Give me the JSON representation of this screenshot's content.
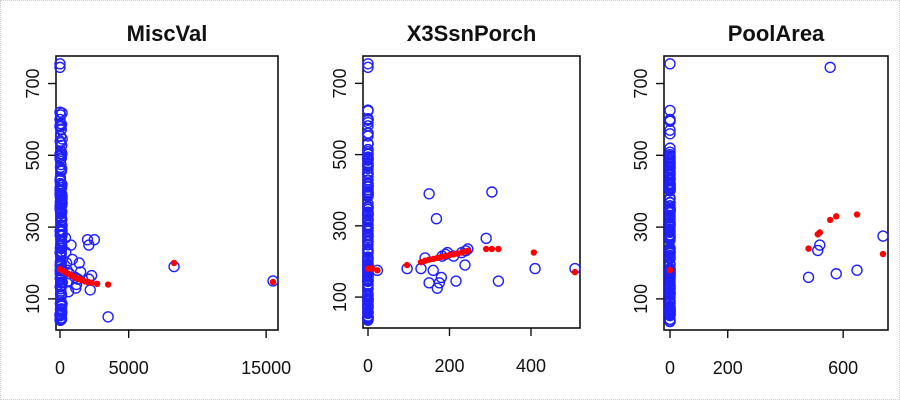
{
  "chart_data": [
    {
      "type": "scatter",
      "title": "MiscVal",
      "xlabel": "",
      "ylabel": "",
      "xlim": [
        0,
        15500
      ],
      "ylim": [
        30,
        760
      ],
      "xticks": [
        0,
        5000,
        15000
      ],
      "xtick_labels": [
        "0",
        "5000",
        "15000"
      ],
      "yticks": [
        100,
        300,
        500,
        700
      ],
      "ytick_labels": [
        "100",
        "300",
        "500",
        "700"
      ],
      "grid": false,
      "series": [
        {
          "marker": "open-circle",
          "color": "#2020ff",
          "x_stacked": 0,
          "y_stacked_range": [
            35,
            620
          ],
          "points": [
            [
              0,
              745
            ],
            [
              0,
              755
            ],
            [
              0,
              620
            ],
            [
              0,
              600
            ],
            [
              0,
              580
            ],
            [
              400,
              270
            ],
            [
              420,
              230
            ],
            [
              480,
              200
            ],
            [
              520,
              180
            ],
            [
              600,
              150
            ],
            [
              620,
              120
            ],
            [
              700,
              170
            ],
            [
              800,
              250
            ],
            [
              900,
              210
            ],
            [
              1100,
              160
            ],
            [
              1150,
              130
            ],
            [
              1200,
              140
            ],
            [
              1300,
              155
            ],
            [
              1400,
              200
            ],
            [
              1500,
              175
            ],
            [
              2000,
              265
            ],
            [
              2100,
              250
            ],
            [
              2100,
              155
            ],
            [
              2200,
              125
            ],
            [
              2300,
              165
            ],
            [
              2500,
              265
            ],
            [
              3500,
              50
            ],
            [
              8300,
              190
            ],
            [
              15500,
              150
            ]
          ]
        },
        {
          "marker": "filled-circle",
          "color": "#ff0000",
          "points": [
            [
              0,
              183
            ],
            [
              200,
              178
            ],
            [
              400,
              174
            ],
            [
              600,
              170
            ],
            [
              800,
              166
            ],
            [
              1000,
              162
            ],
            [
              1200,
              158
            ],
            [
              1400,
              155
            ],
            [
              1600,
              152
            ],
            [
              1800,
              149
            ],
            [
              2000,
              147
            ],
            [
              2300,
              145
            ],
            [
              2700,
              142
            ],
            [
              3500,
              140
            ],
            [
              8300,
              200
            ],
            [
              15500,
              147
            ]
          ]
        }
      ]
    },
    {
      "type": "scatter",
      "title": "X3SsnPorch",
      "xlabel": "",
      "ylabel": "",
      "xlim": [
        0,
        508
      ],
      "ylim": [
        30,
        760
      ],
      "xticks": [
        0,
        200,
        400
      ],
      "xtick_labels": [
        "0",
        "200",
        "400"
      ],
      "yticks": [
        100,
        300,
        500,
        700
      ],
      "ytick_labels": [
        "100",
        "300",
        "500",
        "700"
      ],
      "grid": false,
      "series": [
        {
          "marker": "open-circle",
          "color": "#2020ff",
          "x_stacked": 0,
          "y_stacked_range": [
            35,
            625
          ],
          "points": [
            [
              0,
              745
            ],
            [
              0,
              755
            ],
            [
              0,
              625
            ],
            [
              0,
              600
            ],
            [
              0,
              560
            ],
            [
              0,
              530
            ],
            [
              23,
              175
            ],
            [
              96,
              180
            ],
            [
              130,
              180
            ],
            [
              140,
              210
            ],
            [
              150,
              390
            ],
            [
              150,
              140
            ],
            [
              160,
              175
            ],
            [
              168,
              320
            ],
            [
              170,
              125
            ],
            [
              175,
              140
            ],
            [
              180,
              155
            ],
            [
              182,
              215
            ],
            [
              190,
              220
            ],
            [
              195,
              225
            ],
            [
              210,
              215
            ],
            [
              216,
              145
            ],
            [
              230,
              225
            ],
            [
              238,
              190
            ],
            [
              240,
              230
            ],
            [
              245,
              235
            ],
            [
              290,
              265
            ],
            [
              304,
              395
            ],
            [
              320,
              145
            ],
            [
              410,
              180
            ],
            [
              508,
              180
            ]
          ]
        },
        {
          "marker": "filled-circle",
          "color": "#ff0000",
          "points": [
            [
              0,
              180
            ],
            [
              10,
              180
            ],
            [
              23,
              175
            ],
            [
              96,
              190
            ],
            [
              130,
              198
            ],
            [
              140,
              202
            ],
            [
              150,
              205
            ],
            [
              160,
              207
            ],
            [
              170,
              210
            ],
            [
              180,
              213
            ],
            [
              190,
              215
            ],
            [
              200,
              218
            ],
            [
              210,
              220
            ],
            [
              220,
              222
            ],
            [
              230,
              225
            ],
            [
              240,
              228
            ],
            [
              245,
              230
            ],
            [
              290,
              235
            ],
            [
              304,
              235
            ],
            [
              320,
              235
            ],
            [
              407,
              225
            ],
            [
              508,
              170
            ]
          ]
        }
      ]
    },
    {
      "type": "scatter",
      "title": "PoolArea",
      "xlabel": "",
      "ylabel": "",
      "xlim": [
        0,
        738
      ],
      "ylim": [
        30,
        760
      ],
      "xticks": [
        0,
        200,
        600
      ],
      "xtick_labels": [
        "0",
        "200",
        "600"
      ],
      "yticks": [
        100,
        300,
        500,
        700
      ],
      "ytick_labels": [
        "100",
        "300",
        "500",
        "700"
      ],
      "grid": false,
      "series": [
        {
          "marker": "open-circle",
          "color": "#2020ff",
          "x_stacked": 0,
          "y_stacked_range": [
            35,
            625
          ],
          "points": [
            [
              0,
              755
            ],
            [
              0,
              625
            ],
            [
              0,
              600
            ],
            [
              0,
              560
            ],
            [
              0,
              520
            ],
            [
              480,
              160
            ],
            [
              512,
              235
            ],
            [
              519,
              250
            ],
            [
              555,
              745
            ],
            [
              576,
              170
            ],
            [
              648,
              180
            ],
            [
              738,
              275
            ]
          ]
        },
        {
          "marker": "filled-circle",
          "color": "#ff0000",
          "points": [
            [
              0,
              180
            ],
            [
              480,
              240
            ],
            [
              512,
              280
            ],
            [
              519,
              285
            ],
            [
              555,
              320
            ],
            [
              576,
              330
            ],
            [
              648,
              335
            ],
            [
              738,
              225
            ]
          ]
        }
      ]
    }
  ]
}
